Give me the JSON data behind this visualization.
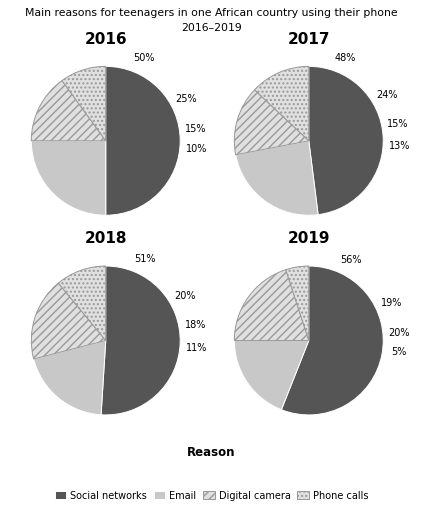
{
  "title_line1": "Main reasons for teenagers in one African country using their phone",
  "title_line2": "2016–2019",
  "years": [
    "2016",
    "2017",
    "2018",
    "2019"
  ],
  "data": {
    "2016": [
      50,
      25,
      15,
      10
    ],
    "2017": [
      48,
      24,
      15,
      13
    ],
    "2018": [
      51,
      20,
      18,
      11
    ],
    "2019": [
      56,
      19,
      20,
      5
    ]
  },
  "labels": [
    "Social networks",
    "Email",
    "Digital camera",
    "Phone calls"
  ],
  "slice_colors": [
    "#555555",
    "#c8c8c8",
    "#e0e0e0",
    "#e0e0e0"
  ],
  "slice_hatches": [
    "",
    "",
    "////",
    "...."
  ],
  "legend_label": "Reason",
  "startangle": 90,
  "background_color": "#ffffff"
}
